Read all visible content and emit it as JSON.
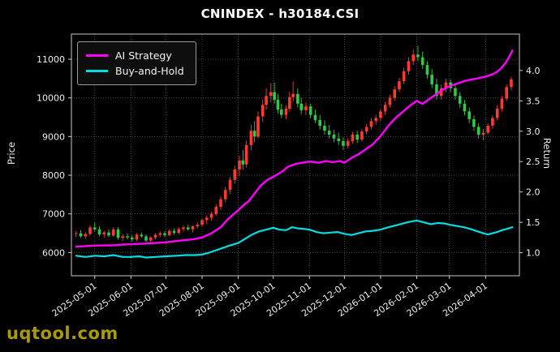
{
  "window": {
    "title": "CNINDEX - h30184.CSI"
  },
  "chart_data": {
    "type": "candlestick+line",
    "title": "CNINDEX - h30184.CSI",
    "ylabel_left": "Price",
    "ylabel_right": "Return",
    "watermark": "uqtool.com",
    "legend_position": "top-left",
    "grid": true,
    "x_domain_days": [
      -4,
      380
    ],
    "price_axis": {
      "min": 5400,
      "max": 11650,
      "ticks": [
        6000,
        7000,
        8000,
        9000,
        10000,
        11000
      ]
    },
    "return_axis": {
      "min": 0.62,
      "max": 4.6,
      "ticks": [
        1.0,
        1.5,
        2.0,
        2.5,
        3.0,
        3.5,
        4.0
      ]
    },
    "x_ticks": [
      {
        "day": 16,
        "label": "2025-05-01"
      },
      {
        "day": 47,
        "label": "2025-06-01"
      },
      {
        "day": 77,
        "label": "2025-07-01"
      },
      {
        "day": 108,
        "label": "2025-08-01"
      },
      {
        "day": 139,
        "label": "2025-09-01"
      },
      {
        "day": 169,
        "label": "2025-10-01"
      },
      {
        "day": 200,
        "label": "2025-11-01"
      },
      {
        "day": 230,
        "label": "2025-12-01"
      },
      {
        "day": 261,
        "label": "2026-01-01"
      },
      {
        "day": 292,
        "label": "2026-02-01"
      },
      {
        "day": 320,
        "label": "2026-03-01"
      },
      {
        "day": 351,
        "label": "2026-04-01"
      }
    ],
    "colors": {
      "background": "#000000",
      "grid": "#565656",
      "frame": "#c8c8c8",
      "tick_text": "#ededed",
      "title_text": "#ffffff",
      "watermark": "#b3a300",
      "candle_up": "#ff3b30",
      "candle_down": "#2ecc40",
      "ai_strategy": "#ff00ff",
      "buy_and_hold": "#00dde0"
    },
    "candles": {
      "name": "CNINDEX price (OHLC)",
      "axis": "price",
      "data": [
        [
          0,
          6480,
          6560,
          6400,
          6500
        ],
        [
          4,
          6500,
          6580,
          6380,
          6420
        ],
        [
          8,
          6420,
          6520,
          6350,
          6480
        ],
        [
          12,
          6480,
          6700,
          6440,
          6650
        ],
        [
          16,
          6650,
          6780,
          6550,
          6600
        ],
        [
          20,
          6600,
          6680,
          6420,
          6470
        ],
        [
          24,
          6470,
          6560,
          6380,
          6520
        ],
        [
          28,
          6520,
          6600,
          6400,
          6440
        ],
        [
          32,
          6440,
          6650,
          6400,
          6600
        ],
        [
          36,
          6600,
          6660,
          6330,
          6380
        ],
        [
          40,
          6380,
          6480,
          6300,
          6420
        ],
        [
          44,
          6420,
          6500,
          6340,
          6390
        ],
        [
          48,
          6390,
          6450,
          6280,
          6340
        ],
        [
          52,
          6340,
          6500,
          6300,
          6460
        ],
        [
          56,
          6460,
          6520,
          6380,
          6420
        ],
        [
          60,
          6420,
          6470,
          6270,
          6310
        ],
        [
          64,
          6310,
          6420,
          6260,
          6390
        ],
        [
          68,
          6390,
          6500,
          6340,
          6460
        ],
        [
          72,
          6460,
          6540,
          6400,
          6500
        ],
        [
          76,
          6500,
          6560,
          6400,
          6450
        ],
        [
          80,
          6450,
          6600,
          6420,
          6560
        ],
        [
          84,
          6560,
          6620,
          6460,
          6510
        ],
        [
          88,
          6510,
          6650,
          6470,
          6610
        ],
        [
          92,
          6610,
          6700,
          6540,
          6650
        ],
        [
          96,
          6650,
          6720,
          6560,
          6600
        ],
        [
          100,
          6600,
          6700,
          6520,
          6680
        ],
        [
          104,
          6680,
          6780,
          6620,
          6720
        ],
        [
          108,
          6720,
          6880,
          6680,
          6840
        ],
        [
          112,
          6840,
          6960,
          6740,
          6900
        ],
        [
          116,
          6900,
          7050,
          6820,
          7000
        ],
        [
          120,
          7000,
          7250,
          6950,
          7180
        ],
        [
          124,
          7180,
          7450,
          7100,
          7380
        ],
        [
          128,
          7380,
          7700,
          7300,
          7620
        ],
        [
          132,
          7620,
          7950,
          7520,
          7880
        ],
        [
          136,
          7880,
          8250,
          7780,
          8150
        ],
        [
          140,
          8150,
          8500,
          7980,
          8380
        ],
        [
          143,
          8380,
          8650,
          8150,
          8280
        ],
        [
          146,
          8280,
          8900,
          8200,
          8780
        ],
        [
          150,
          8780,
          9300,
          8650,
          9150
        ],
        [
          153,
          9150,
          9400,
          8850,
          9000
        ],
        [
          156,
          9000,
          9650,
          8950,
          9520
        ],
        [
          160,
          9520,
          9950,
          9380,
          9820
        ],
        [
          163,
          9820,
          10250,
          9700,
          10050
        ],
        [
          167,
          10050,
          10380,
          9880,
          10150
        ],
        [
          170,
          10150,
          10400,
          9850,
          9950
        ],
        [
          173,
          9950,
          10100,
          9600,
          9700
        ],
        [
          176,
          9700,
          9850,
          9480,
          9560
        ],
        [
          180,
          9560,
          9800,
          9450,
          9720
        ],
        [
          183,
          9720,
          10150,
          9650,
          10020
        ],
        [
          186,
          10020,
          10420,
          9900,
          10100
        ],
        [
          190,
          10100,
          10250,
          9750,
          9850
        ],
        [
          193,
          9850,
          10000,
          9580,
          9680
        ],
        [
          197,
          9680,
          9880,
          9560,
          9780
        ],
        [
          201,
          9780,
          9850,
          9480,
          9560
        ],
        [
          205,
          9560,
          9700,
          9350,
          9430
        ],
        [
          209,
          9430,
          9560,
          9180,
          9280
        ],
        [
          213,
          9280,
          9420,
          9050,
          9150
        ],
        [
          217,
          9150,
          9300,
          8950,
          9050
        ],
        [
          221,
          9050,
          9180,
          8850,
          8950
        ],
        [
          225,
          8950,
          9100,
          8780,
          8880
        ],
        [
          229,
          8880,
          8980,
          8650,
          8760
        ],
        [
          233,
          8760,
          8950,
          8700,
          8880
        ],
        [
          237,
          8880,
          9120,
          8820,
          9050
        ],
        [
          241,
          9050,
          9150,
          8830,
          8920
        ],
        [
          245,
          8920,
          9200,
          8870,
          9130
        ],
        [
          249,
          9130,
          9330,
          9050,
          9250
        ],
        [
          253,
          9250,
          9480,
          9180,
          9400
        ],
        [
          257,
          9400,
          9560,
          9300,
          9480
        ],
        [
          261,
          9480,
          9720,
          9400,
          9650
        ],
        [
          265,
          9650,
          9900,
          9560,
          9820
        ],
        [
          269,
          9820,
          10080,
          9750,
          10000
        ],
        [
          273,
          10000,
          10300,
          9920,
          10220
        ],
        [
          277,
          10220,
          10520,
          10150,
          10430
        ],
        [
          281,
          10430,
          10780,
          10350,
          10690
        ],
        [
          285,
          10690,
          11050,
          10600,
          10950
        ],
        [
          289,
          10950,
          11250,
          10850,
          11120
        ],
        [
          293,
          11120,
          11350,
          10950,
          11050
        ],
        [
          297,
          11050,
          11200,
          10750,
          10850
        ],
        [
          301,
          10850,
          10950,
          10500,
          10600
        ],
        [
          305,
          10600,
          10750,
          10250,
          10350
        ],
        [
          309,
          10350,
          10500,
          9950,
          10050
        ],
        [
          313,
          10050,
          10350,
          9950,
          10250
        ],
        [
          317,
          10250,
          10500,
          10150,
          10400
        ],
        [
          321,
          10400,
          10480,
          10150,
          10250
        ],
        [
          325,
          10250,
          10350,
          9950,
          10050
        ],
        [
          329,
          10050,
          10150,
          9750,
          9850
        ],
        [
          333,
          9850,
          9950,
          9550,
          9650
        ],
        [
          337,
          9650,
          9750,
          9350,
          9450
        ],
        [
          341,
          9450,
          9550,
          9150,
          9250
        ],
        [
          345,
          9250,
          9350,
          8950,
          9050
        ],
        [
          349,
          9050,
          9200,
          8900,
          9100
        ],
        [
          353,
          9100,
          9350,
          9050,
          9280
        ],
        [
          357,
          9280,
          9550,
          9200,
          9480
        ],
        [
          361,
          9480,
          9800,
          9420,
          9720
        ],
        [
          365,
          9720,
          10050,
          9650,
          9980
        ],
        [
          369,
          9980,
          10350,
          9920,
          10280
        ],
        [
          373,
          10280,
          10550,
          10200,
          10480
        ]
      ]
    },
    "series": [
      {
        "name": "AI Strategy",
        "axis": "return",
        "color": "#ff00ff",
        "width": 2.4,
        "data": [
          [
            0,
            1.1
          ],
          [
            10,
            1.11
          ],
          [
            20,
            1.12
          ],
          [
            30,
            1.12
          ],
          [
            46,
            1.14
          ],
          [
            60,
            1.15
          ],
          [
            76,
            1.17
          ],
          [
            90,
            1.2
          ],
          [
            100,
            1.22
          ],
          [
            108,
            1.25
          ],
          [
            116,
            1.32
          ],
          [
            124,
            1.42
          ],
          [
            130,
            1.55
          ],
          [
            139,
            1.7
          ],
          [
            144,
            1.79
          ],
          [
            148,
            1.85
          ],
          [
            152,
            1.95
          ],
          [
            158,
            2.1
          ],
          [
            164,
            2.2
          ],
          [
            169,
            2.25
          ],
          [
            176,
            2.33
          ],
          [
            182,
            2.42
          ],
          [
            188,
            2.46
          ],
          [
            194,
            2.48
          ],
          [
            200,
            2.5
          ],
          [
            208,
            2.48
          ],
          [
            214,
            2.51
          ],
          [
            220,
            2.49
          ],
          [
            226,
            2.51
          ],
          [
            230,
            2.48
          ],
          [
            236,
            2.56
          ],
          [
            242,
            2.62
          ],
          [
            248,
            2.7
          ],
          [
            254,
            2.78
          ],
          [
            261,
            2.92
          ],
          [
            268,
            3.1
          ],
          [
            274,
            3.22
          ],
          [
            280,
            3.32
          ],
          [
            286,
            3.42
          ],
          [
            292,
            3.5
          ],
          [
            297,
            3.45
          ],
          [
            302,
            3.52
          ],
          [
            308,
            3.6
          ],
          [
            314,
            3.68
          ],
          [
            320,
            3.74
          ],
          [
            326,
            3.78
          ],
          [
            332,
            3.82
          ],
          [
            338,
            3.85
          ],
          [
            344,
            3.87
          ],
          [
            351,
            3.9
          ],
          [
            356,
            3.93
          ],
          [
            360,
            3.97
          ],
          [
            364,
            4.03
          ],
          [
            368,
            4.12
          ],
          [
            371,
            4.22
          ],
          [
            374,
            4.33
          ]
        ]
      },
      {
        "name": "Buy-and-Hold",
        "axis": "return",
        "color": "#00dde0",
        "width": 2.2,
        "data": [
          [
            0,
            0.95
          ],
          [
            8,
            0.93
          ],
          [
            16,
            0.95
          ],
          [
            24,
            0.94
          ],
          [
            32,
            0.96
          ],
          [
            40,
            0.93
          ],
          [
            47,
            0.93
          ],
          [
            54,
            0.94
          ],
          [
            60,
            0.92
          ],
          [
            68,
            0.93
          ],
          [
            77,
            0.94
          ],
          [
            86,
            0.95
          ],
          [
            94,
            0.96
          ],
          [
            102,
            0.96
          ],
          [
            108,
            0.97
          ],
          [
            114,
            1.0
          ],
          [
            120,
            1.04
          ],
          [
            126,
            1.08
          ],
          [
            132,
            1.12
          ],
          [
            139,
            1.16
          ],
          [
            145,
            1.23
          ],
          [
            151,
            1.3
          ],
          [
            157,
            1.35
          ],
          [
            163,
            1.38
          ],
          [
            169,
            1.41
          ],
          [
            174,
            1.38
          ],
          [
            180,
            1.37
          ],
          [
            185,
            1.42
          ],
          [
            190,
            1.4
          ],
          [
            196,
            1.39
          ],
          [
            200,
            1.38
          ],
          [
            206,
            1.34
          ],
          [
            212,
            1.32
          ],
          [
            218,
            1.33
          ],
          [
            224,
            1.34
          ],
          [
            230,
            1.31
          ],
          [
            236,
            1.29
          ],
          [
            242,
            1.32
          ],
          [
            248,
            1.35
          ],
          [
            254,
            1.36
          ],
          [
            261,
            1.38
          ],
          [
            268,
            1.42
          ],
          [
            274,
            1.45
          ],
          [
            280,
            1.48
          ],
          [
            286,
            1.51
          ],
          [
            292,
            1.53
          ],
          [
            298,
            1.5
          ],
          [
            304,
            1.47
          ],
          [
            310,
            1.49
          ],
          [
            316,
            1.48
          ],
          [
            320,
            1.46
          ],
          [
            326,
            1.44
          ],
          [
            332,
            1.42
          ],
          [
            338,
            1.39
          ],
          [
            344,
            1.35
          ],
          [
            349,
            1.32
          ],
          [
            353,
            1.3
          ],
          [
            357,
            1.32
          ],
          [
            361,
            1.34
          ],
          [
            365,
            1.37
          ],
          [
            369,
            1.39
          ],
          [
            374,
            1.42
          ]
        ]
      }
    ]
  }
}
